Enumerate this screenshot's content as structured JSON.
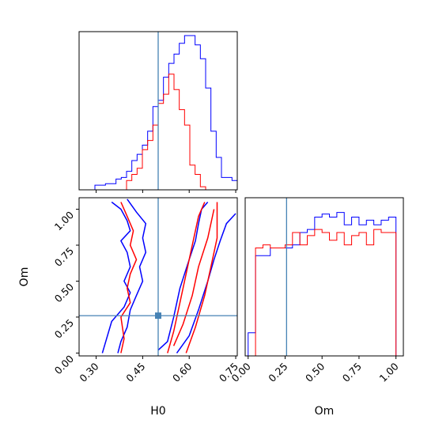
{
  "chart_data": {
    "type": "corner",
    "parameters": [
      "H0",
      "Om"
    ],
    "truths": {
      "H0": 0.5,
      "Om": 0.26
    },
    "series_colors": [
      "#0000ff",
      "#ff0000"
    ],
    "truth_color": "#4682b4",
    "panels": [
      {
        "id": "hist-H0",
        "type": "histogram",
        "xlim": [
          0.245,
          0.755
        ],
        "xticks": [
          0.3,
          0.45,
          0.6,
          0.75
        ],
        "bin_edges": [
          0.245,
          0.262,
          0.279,
          0.296,
          0.313,
          0.33,
          0.347,
          0.364,
          0.381,
          0.398,
          0.415,
          0.432,
          0.449,
          0.466,
          0.483,
          0.5,
          0.517,
          0.534,
          0.551,
          0.568,
          0.585,
          0.602,
          0.619,
          0.636,
          0.653,
          0.67,
          0.687,
          0.704,
          0.721,
          0.738,
          0.755
        ],
        "series": [
          {
            "color": "#0000ff",
            "counts": [
              0,
              0,
              0,
              0.03,
              0.03,
              0.04,
              0.04,
              0.07,
              0.08,
              0.12,
              0.19,
              0.23,
              0.29,
              0.38,
              0.54,
              0.58,
              0.73,
              0.82,
              0.88,
              0.95,
              1.0,
              1.0,
              0.94,
              0.85,
              0.66,
              0.38,
              0.21,
              0.08,
              0.08,
              0.06
            ]
          },
          {
            "color": "#ff0000",
            "counts": [
              0,
              0,
              0,
              0,
              0,
              0,
              0,
              0,
              0,
              0.06,
              0.1,
              0.14,
              0.26,
              0.32,
              0.42,
              0.56,
              0.62,
              0.75,
              0.65,
              0.52,
              0.42,
              0.16,
              0.1,
              0.02,
              0,
              0,
              0,
              0,
              0,
              0
            ]
          }
        ]
      },
      {
        "id": "contour-H0-Om",
        "type": "contour",
        "xlim": [
          0.245,
          0.755
        ],
        "ylim": [
          -0.02,
          1.08
        ],
        "xticks": [
          0.3,
          0.45,
          0.6,
          0.75
        ],
        "yticks": [
          0.0,
          0.25,
          0.5,
          0.75,
          1.0
        ],
        "xlabel": "H0",
        "ylabel": "Om",
        "contours": [
          {
            "color": "#0000ff",
            "points": [
              [
                0.35,
                1.05
              ],
              [
                0.38,
                1.0
              ],
              [
                0.4,
                0.92
              ],
              [
                0.41,
                0.85
              ],
              [
                0.38,
                0.78
              ],
              [
                0.4,
                0.7
              ],
              [
                0.41,
                0.6
              ],
              [
                0.39,
                0.5
              ],
              [
                0.41,
                0.42
              ],
              [
                0.39,
                0.32
              ],
              [
                0.35,
                0.22
              ],
              [
                0.32,
                0.0
              ]
            ]
          },
          {
            "color": "#0000ff",
            "points": [
              [
                0.4,
                1.07
              ],
              [
                0.43,
                0.98
              ],
              [
                0.46,
                0.9
              ],
              [
                0.45,
                0.8
              ],
              [
                0.46,
                0.7
              ],
              [
                0.44,
                0.6
              ],
              [
                0.45,
                0.5
              ],
              [
                0.43,
                0.4
              ],
              [
                0.41,
                0.3
              ],
              [
                0.4,
                0.18
              ],
              [
                0.38,
                0.08
              ],
              [
                0.37,
                0.0
              ]
            ]
          },
          {
            "color": "#0000ff",
            "points": [
              [
                0.5,
                0.02
              ],
              [
                0.53,
                0.08
              ],
              [
                0.55,
                0.25
              ],
              [
                0.57,
                0.45
              ],
              [
                0.6,
                0.65
              ],
              [
                0.62,
                0.78
              ],
              [
                0.63,
                0.9
              ],
              [
                0.64,
                1.0
              ],
              [
                0.66,
                1.05
              ]
            ]
          },
          {
            "color": "#0000ff",
            "points": [
              [
                0.56,
                0.0
              ],
              [
                0.6,
                0.12
              ],
              [
                0.63,
                0.3
              ],
              [
                0.66,
                0.5
              ],
              [
                0.68,
                0.65
              ],
              [
                0.7,
                0.78
              ],
              [
                0.72,
                0.9
              ],
              [
                0.75,
                0.97
              ]
            ]
          },
          {
            "color": "#ff0000",
            "points": [
              [
                0.38,
                1.05
              ],
              [
                0.4,
                0.95
              ],
              [
                0.42,
                0.85
              ],
              [
                0.41,
                0.75
              ],
              [
                0.43,
                0.65
              ],
              [
                0.41,
                0.55
              ],
              [
                0.4,
                0.45
              ],
              [
                0.41,
                0.35
              ],
              [
                0.38,
                0.25
              ],
              [
                0.39,
                0.1
              ],
              [
                0.38,
                0.0
              ]
            ]
          },
          {
            "color": "#ff0000",
            "points": [
              [
                0.53,
                0.0
              ],
              [
                0.55,
                0.15
              ],
              [
                0.57,
                0.35
              ],
              [
                0.59,
                0.55
              ],
              [
                0.61,
                0.75
              ],
              [
                0.63,
                0.95
              ],
              [
                0.65,
                1.05
              ]
            ]
          },
          {
            "color": "#ff0000",
            "points": [
              [
                0.55,
                0.05
              ],
              [
                0.58,
                0.2
              ],
              [
                0.61,
                0.4
              ],
              [
                0.63,
                0.6
              ],
              [
                0.66,
                0.8
              ],
              [
                0.68,
                1.0
              ]
            ]
          },
          {
            "color": "#ff0000",
            "points": [
              [
                0.59,
                0.0
              ],
              [
                0.62,
                0.18
              ],
              [
                0.65,
                0.4
              ],
              [
                0.67,
                0.6
              ],
              [
                0.69,
                0.8
              ],
              [
                0.69,
                1.05
              ]
            ]
          }
        ]
      },
      {
        "id": "hist-Om",
        "type": "histogram",
        "xlim": [
          -0.02,
          1.05
        ],
        "xticks": [
          0.0,
          0.25,
          0.5,
          0.75,
          1.0
        ],
        "xlabel": "Om",
        "bin_edges": [
          0.0,
          0.05,
          0.1,
          0.15,
          0.2,
          0.25,
          0.3,
          0.35,
          0.4,
          0.45,
          0.5,
          0.55,
          0.6,
          0.65,
          0.7,
          0.75,
          0.8,
          0.85,
          0.9,
          0.95,
          1.0
        ],
        "series": [
          {
            "color": "#0000ff",
            "counts": [
              0.15,
              0.65,
              0.65,
              0.7,
              0.7,
              0.7,
              0.72,
              0.8,
              0.82,
              0.9,
              0.92,
              0.9,
              0.93,
              0.85,
              0.9,
              0.85,
              0.88,
              0.85,
              0.88,
              0.9
            ]
          },
          {
            "color": "#ff0000",
            "counts": [
              0.0,
              0.7,
              0.72,
              0.7,
              0.7,
              0.72,
              0.8,
              0.72,
              0.78,
              0.82,
              0.8,
              0.75,
              0.8,
              0.72,
              0.78,
              0.8,
              0.72,
              0.82,
              0.8,
              0.8
            ]
          }
        ]
      }
    ]
  }
}
